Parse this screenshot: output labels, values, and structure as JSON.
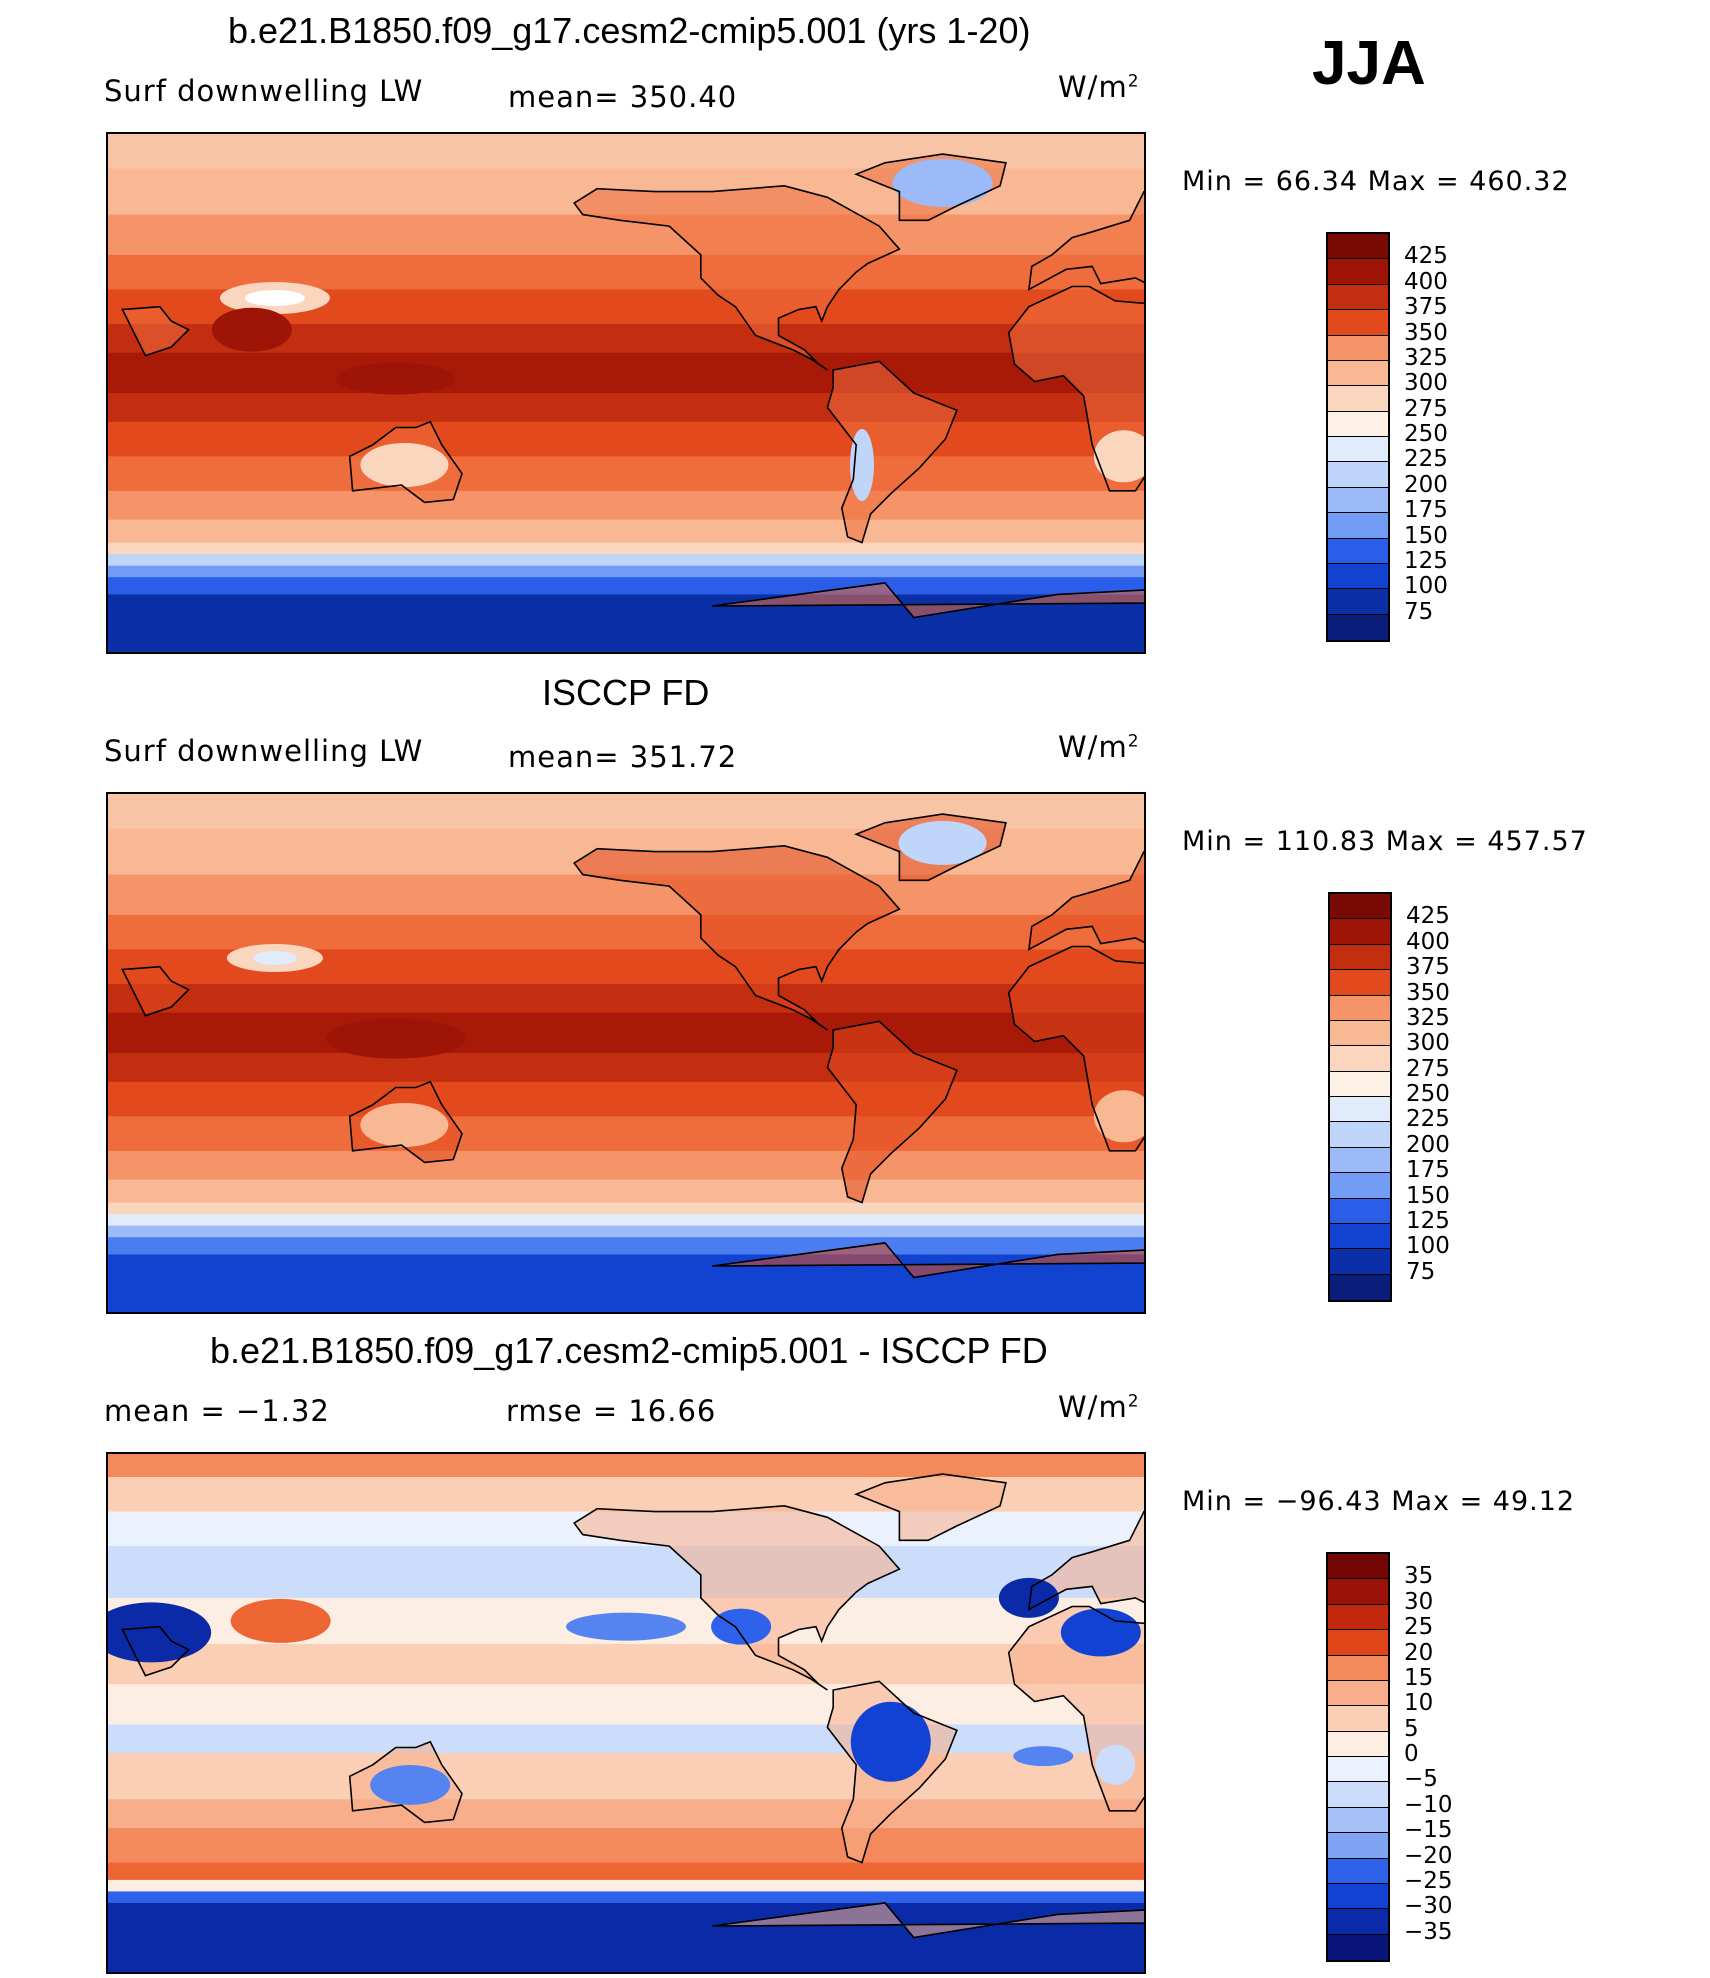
{
  "season": "JJA",
  "units_label": "W/m",
  "units_sup": "2",
  "colors": {
    "abs_palette": [
      "#0b1d7a",
      "#0a2fa6",
      "#1243d0",
      "#2a5ee8",
      "#4a7ef0",
      "#739cf4",
      "#9bbaf7",
      "#bfd5fa",
      "#e0ebfc",
      "#fdf1e6",
      "#fbd6bf",
      "#f8b894",
      "#f59468",
      "#ef6d3c",
      "#e24a1e",
      "#c32d10",
      "#9e1508",
      "#7a0a04"
    ],
    "diff_palette": [
      "#09157a",
      "#0a2aa8",
      "#1242d4",
      "#2e62ea",
      "#5583f0",
      "#80a3f4",
      "#a7c1f8",
      "#ccdcfb",
      "#ecf2fd",
      "#fdeee3",
      "#fbcfb5",
      "#f8ae8a",
      "#f4895c",
      "#ee6534",
      "#e0451a",
      "#c2280e",
      "#9a1208",
      "#720704"
    ]
  },
  "chart_data": [
    {
      "type": "heatmap",
      "title": "b.e21.B1850.f09_g17.cesm2-cmip5.001 (yrs 1-20)",
      "left_label": "Surf downwelling LW",
      "center_label": "mean= 350.40",
      "mean": 350.4,
      "min_max_label": "Min =   66.34 Max = 460.32",
      "min": 66.34,
      "max": 460.32,
      "colorbar_ticks": [
        "425",
        "400",
        "375",
        "350",
        "325",
        "300",
        "275",
        "250",
        "225",
        "200",
        "175",
        "150",
        "125",
        "100",
        "75"
      ]
    },
    {
      "type": "heatmap",
      "title": "ISCCP FD",
      "left_label": "Surf downwelling LW",
      "center_label": "mean= 351.72",
      "mean": 351.72,
      "min_max_label": "Min = 110.83 Max = 457.57",
      "min": 110.83,
      "max": 457.57,
      "colorbar_ticks": [
        "425",
        "400",
        "375",
        "350",
        "325",
        "300",
        "275",
        "250",
        "225",
        "200",
        "175",
        "150",
        "125",
        "100",
        "75"
      ]
    },
    {
      "type": "heatmap",
      "title": "b.e21.B1850.f09_g17.cesm2-cmip5.001 - ISCCP FD",
      "left_label": "mean =   −1.32",
      "center_label": "rmse =   16.66",
      "mean": -1.32,
      "rmse": 16.66,
      "min_max_label": "Min = −96.43 Max =   49.12",
      "min": -96.43,
      "max": 49.12,
      "colorbar_ticks": [
        "35",
        "30",
        "25",
        "20",
        "15",
        "10",
        "5",
        "0",
        "−5",
        "−10",
        "−15",
        "−20",
        "−25",
        "−30",
        "−35"
      ]
    }
  ]
}
